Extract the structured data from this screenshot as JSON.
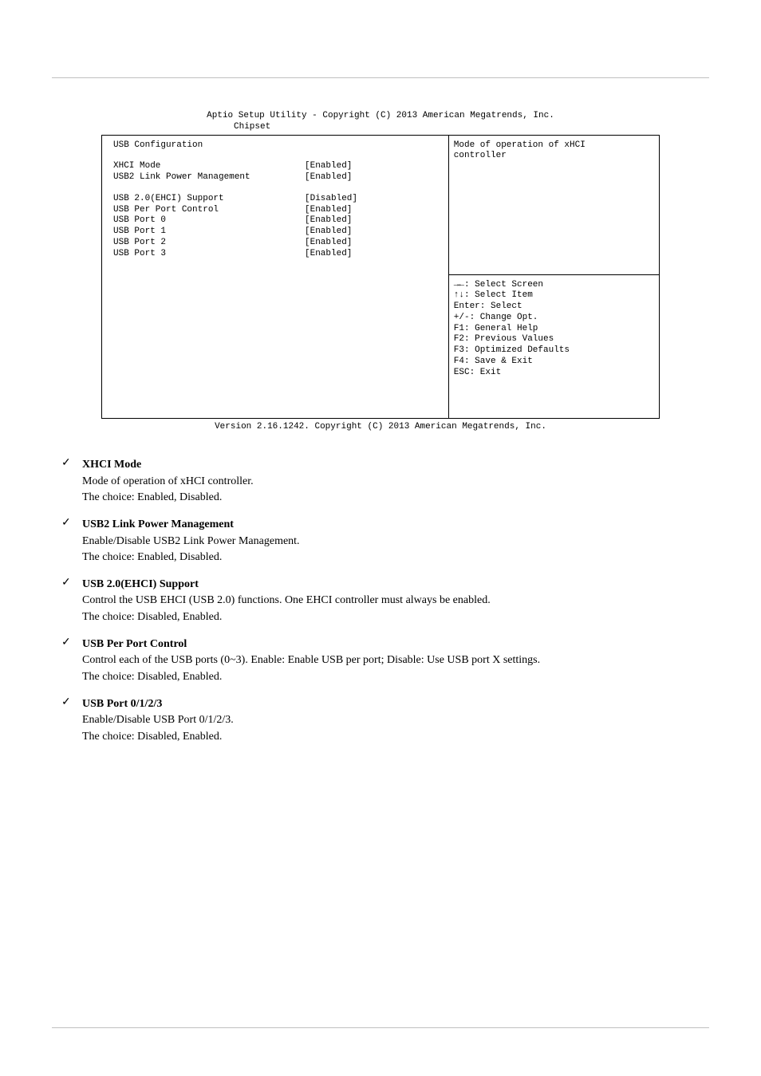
{
  "bios": {
    "title_line1": "Aptio Setup Utility - Copyright (C) 2013 American Megatrends, Inc.",
    "title_line2": "Chipset",
    "section": "USB Configuration",
    "settings": [
      {
        "k": "XHCI Mode",
        "v": "[Enabled]"
      },
      {
        "k": "USB2 Link Power Management",
        "v": "[Enabled]"
      }
    ],
    "settings2": [
      {
        "k": "USB 2.0(EHCI) Support",
        "v": "[Disabled]"
      },
      {
        "k": "USB Per Port Control",
        "v": "[Enabled]"
      },
      {
        "k": "USB Port 0",
        "v": "[Enabled]"
      },
      {
        "k": "USB Port 1",
        "v": "[Enabled]"
      },
      {
        "k": "USB Port 2",
        "v": "[Enabled]"
      },
      {
        "k": "USB Port 3",
        "v": "[Enabled]"
      }
    ],
    "help_top": [
      "Mode of operation of xHCI",
      "controller"
    ],
    "help_keys": [
      "→←: Select Screen",
      "↑↓: Select Item",
      "Enter: Select",
      "+/-: Change Opt.",
      "F1: General Help",
      "F2: Previous Values",
      "F3: Optimized Defaults",
      "F4: Save & Exit",
      "ESC: Exit"
    ],
    "footer": "Version 2.16.1242. Copyright (C) 2013 American Megatrends, Inc."
  },
  "items": [
    {
      "title": "XHCI Mode",
      "desc": "Mode of operation of xHCI controller.",
      "options": "The choice: Enabled, Disabled."
    },
    {
      "title": "USB2 Link Power Management",
      "desc": "Enable/Disable USB2 Link Power Management.",
      "options": "The choice: Enabled, Disabled."
    },
    {
      "title": "USB 2.0(EHCI) Support",
      "desc": "Control the USB EHCI (USB 2.0) functions. One EHCI controller must always be enabled.",
      "options": "The choice: Disabled, Enabled."
    },
    {
      "title": "USB Per Port Control",
      "desc": "Control each of the USB ports (0~3). Enable: Enable USB per port; Disable: Use USB port X settings.",
      "options": "The choice: Disabled, Enabled."
    },
    {
      "title": "USB Port 0/1/2/3",
      "desc": "Enable/Disable USB Port 0/1/2/3.",
      "options": "The choice: Disabled, Enabled."
    }
  ],
  "check_glyph": "✓"
}
